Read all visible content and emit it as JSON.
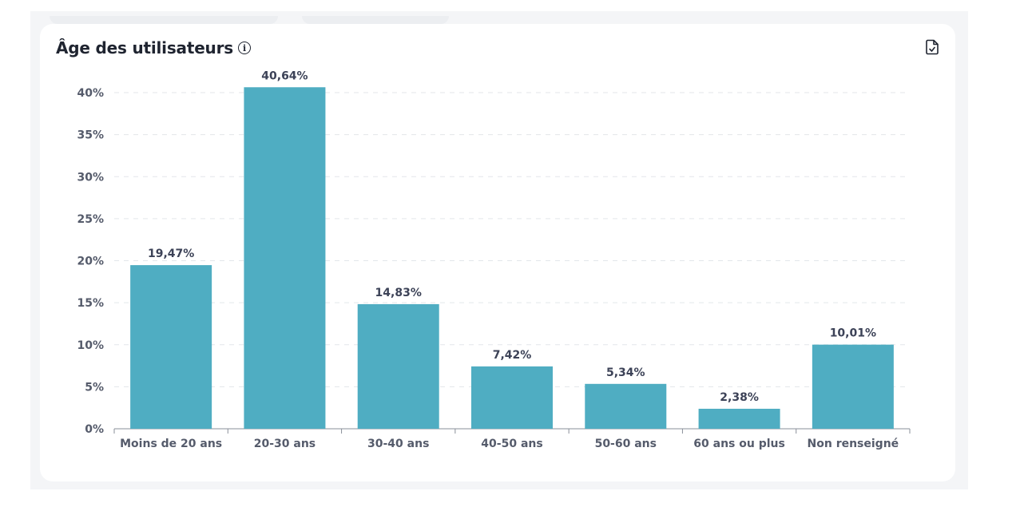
{
  "card": {
    "title": "Âge des utilisateurs",
    "info_icon": "info-icon",
    "export_icon": "file-export-icon"
  },
  "colors": {
    "bar": "#4fadc2",
    "grid": "#e3e6ea",
    "axis": "#8a8f99"
  },
  "chart_data": {
    "type": "bar",
    "title": "Âge des utilisateurs",
    "xlabel": "",
    "ylabel": "",
    "categories": [
      "Moins de 20 ans",
      "20-30 ans",
      "30-40 ans",
      "40-50 ans",
      "50-60 ans",
      "60 ans ou plus",
      "Non renseigné"
    ],
    "values": [
      19.47,
      40.64,
      14.83,
      7.42,
      5.34,
      2.38,
      10.01
    ],
    "value_labels": [
      "19,47%",
      "40,64%",
      "14,83%",
      "7,42%",
      "5,34%",
      "2,38%",
      "10,01%"
    ],
    "ylim": [
      0,
      40
    ],
    "yticks": [
      0,
      5,
      10,
      15,
      20,
      25,
      30,
      35,
      40
    ],
    "ytick_labels": [
      "0%",
      "5%",
      "10%",
      "15%",
      "20%",
      "25%",
      "30%",
      "35%",
      "40%"
    ],
    "grid": true,
    "legend": "none"
  }
}
